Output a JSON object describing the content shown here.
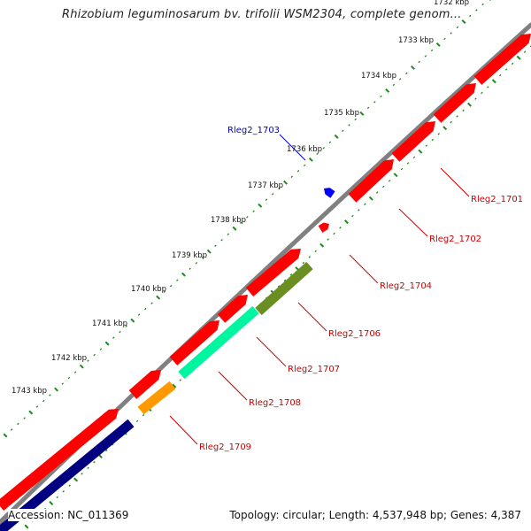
{
  "header": {
    "title": "Rhizobium leguminosarum bv. trifolii WSM2304, complete genom..."
  },
  "footer": {
    "accession": "Accession: NC_011369",
    "summary": "Topology: circular; Length: 4,537,948 bp; Genes: 4,387"
  },
  "colors": {
    "backbone": "#808080",
    "forward_gene": "#ff0000",
    "reverse_gene": "#0000ff",
    "label_forward": "#cc0000",
    "label_reverse": "#0000cc",
    "tick": "#1a8a1a",
    "track_olive": "#6b8e23",
    "track_aqua": "#00f5a0",
    "track_orange": "#ff9900",
    "track_navy": "#000080"
  },
  "scale_ticks": [
    "1732 kbp",
    "1733 kbp",
    "1734 kbp",
    "1735 kbp",
    "1736 kbp",
    "1737 kbp",
    "1738 kbp",
    "1739 kbp",
    "1740 kbp",
    "1741 kbp",
    "1742 kbp",
    "1743 kbp"
  ],
  "gene_labels": [
    {
      "name": "Rleg2_1701",
      "strand": "forward"
    },
    {
      "name": "Rleg2_1702",
      "strand": "forward"
    },
    {
      "name": "Rleg2_1703",
      "strand": "reverse"
    },
    {
      "name": "Rleg2_1704",
      "strand": "forward"
    },
    {
      "name": "Rleg2_1706",
      "strand": "forward"
    },
    {
      "name": "Rleg2_1707",
      "strand": "forward"
    },
    {
      "name": "Rleg2_1708",
      "strand": "forward"
    },
    {
      "name": "Rleg2_1709",
      "strand": "forward"
    }
  ]
}
